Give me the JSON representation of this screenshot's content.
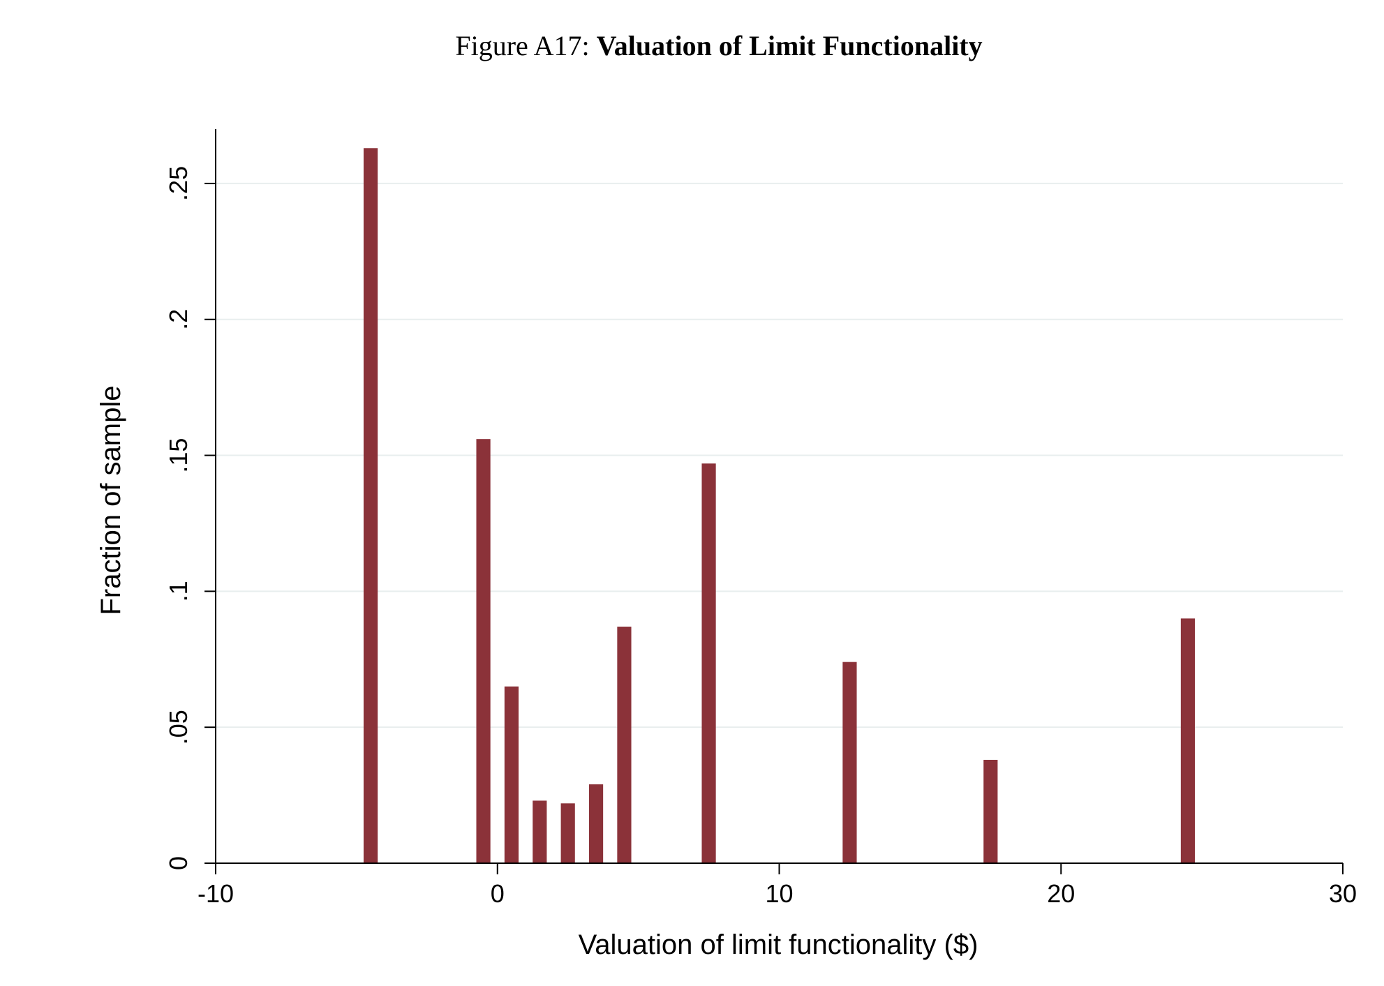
{
  "title": {
    "prefix": "Figure A17:",
    "main": "Valuation of Limit Functionality"
  },
  "chart_data": {
    "type": "bar",
    "xlabel": "Valuation of limit functionality ($)",
    "ylabel": "Fraction of sample",
    "xlim": [
      -10,
      30
    ],
    "ylim": [
      0,
      0.27
    ],
    "xticks": [
      {
        "value": -10,
        "label": "-10"
      },
      {
        "value": 0,
        "label": "0"
      },
      {
        "value": 10,
        "label": "10"
      },
      {
        "value": 20,
        "label": "20"
      },
      {
        "value": 30,
        "label": "30"
      }
    ],
    "yticks": [
      {
        "value": 0,
        "label": "0"
      },
      {
        "value": 0.05,
        "label": ".05"
      },
      {
        "value": 0.1,
        "label": ".1"
      },
      {
        "value": 0.15,
        "label": ".15"
      },
      {
        "value": 0.2,
        "label": ".2"
      },
      {
        "value": 0.25,
        "label": ".25"
      }
    ],
    "grid": true,
    "bar_width": 0.5,
    "bars": [
      {
        "x": -4.5,
        "value": 0.263
      },
      {
        "x": -0.5,
        "value": 0.156
      },
      {
        "x": 0.5,
        "value": 0.065
      },
      {
        "x": 1.5,
        "value": 0.023
      },
      {
        "x": 2.5,
        "value": 0.022
      },
      {
        "x": 3.5,
        "value": 0.029
      },
      {
        "x": 4.5,
        "value": 0.087
      },
      {
        "x": 7.5,
        "value": 0.147
      },
      {
        "x": 12.5,
        "value": 0.074
      },
      {
        "x": 17.5,
        "value": 0.038
      },
      {
        "x": 24.5,
        "value": 0.09
      }
    ],
    "colors": {
      "bar": "#8b3239",
      "grid": "#e8eeee",
      "axis": "#000000"
    }
  }
}
